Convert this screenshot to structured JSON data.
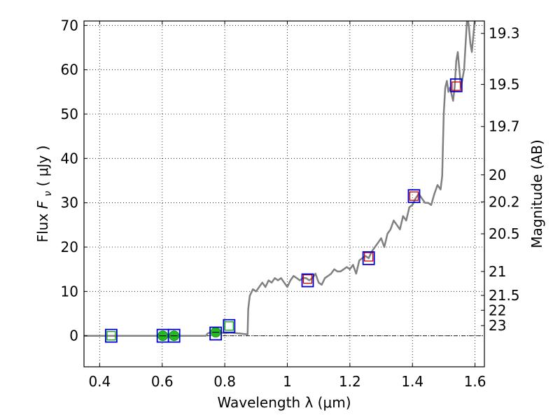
{
  "chart_data": {
    "type": "line",
    "xlabel": "Wavelength  λ (μm)",
    "ylabel": "Flux  F_ν  ( μJy )",
    "ylabel_parts": {
      "pre": "Flux ",
      "var": "F",
      "sub": "ν",
      "post": "  ( μJy )"
    },
    "ylabel_right": "Magnitude (AB)",
    "xlim": [
      0.35,
      1.63
    ],
    "ylim": [
      -7,
      71
    ],
    "x_ticks": [
      0.4,
      0.6,
      0.8,
      1.0,
      1.2,
      1.4,
      1.6
    ],
    "x_tick_labels": [
      "0.4",
      "0.6",
      "0.8",
      "1",
      "1.2",
      "1.4",
      "1.6"
    ],
    "y_ticks": [
      0,
      10,
      20,
      30,
      40,
      50,
      60,
      70
    ],
    "y_tick_labels": [
      "0",
      "10",
      "20",
      "30",
      "40",
      "50",
      "60",
      "70"
    ],
    "mag_ticks": [
      {
        "label": "19.3",
        "flux": 68.2
      },
      {
        "label": "19.5",
        "flux": 56.7
      },
      {
        "label": "19.7",
        "flux": 47.2
      },
      {
        "label": "20",
        "flux": 36.3
      },
      {
        "label": "20.2",
        "flux": 30.2
      },
      {
        "label": "20.5",
        "flux": 23.0
      },
      {
        "label": "21",
        "flux": 14.5
      },
      {
        "label": "21.5",
        "flux": 9.1
      },
      {
        "label": "22",
        "flux": 5.75
      },
      {
        "label": "23",
        "flux": 2.29
      }
    ],
    "grid": true,
    "colors": {
      "model_sed": "#808080",
      "observed_box": "#0000cc",
      "model_phot_red": "#cc0000",
      "model_phot_green": "#00aa00",
      "detection_dot": "#22bb22",
      "zero_line": "#000000"
    },
    "series": [
      {
        "kind": "model_sed",
        "x": [
          0.35,
          0.74,
          0.745,
          0.76,
          0.78,
          0.8,
          0.82,
          0.85,
          0.873,
          0.875,
          0.88,
          0.89,
          0.9,
          0.92,
          0.93,
          0.94,
          0.95,
          0.96,
          0.97,
          0.98,
          0.99,
          1.0,
          1.01,
          1.02,
          1.03,
          1.04,
          1.05,
          1.06,
          1.07,
          1.08,
          1.09,
          1.1,
          1.11,
          1.12,
          1.13,
          1.14,
          1.15,
          1.16,
          1.17,
          1.18,
          1.19,
          1.2,
          1.21,
          1.22,
          1.23,
          1.24,
          1.25,
          1.26,
          1.27,
          1.28,
          1.29,
          1.3,
          1.31,
          1.32,
          1.33,
          1.34,
          1.35,
          1.36,
          1.37,
          1.38,
          1.39,
          1.4,
          1.41,
          1.42,
          1.43,
          1.44,
          1.45,
          1.46,
          1.47,
          1.48,
          1.49,
          1.495,
          1.5,
          1.505,
          1.51,
          1.515,
          1.52,
          1.53,
          1.535,
          1.54,
          1.545,
          1.55,
          1.555,
          1.56,
          1.565,
          1.57,
          1.575,
          1.58,
          1.585,
          1.59,
          1.595,
          1.6,
          1.605
        ],
        "y": [
          0,
          0,
          0.5,
          1.0,
          0.8,
          0.6,
          0.7,
          0.5,
          0.3,
          6,
          9,
          10.5,
          10,
          12,
          11,
          12.5,
          12,
          13,
          12.5,
          13,
          12,
          11,
          12.5,
          13.5,
          13,
          12.5,
          13,
          13,
          12.5,
          13,
          14,
          12,
          11.5,
          13,
          13.5,
          14,
          15,
          14.5,
          14.5,
          15,
          15.5,
          15,
          16,
          14,
          17,
          17.5,
          18,
          17.5,
          19,
          20,
          21,
          22,
          20,
          23,
          24,
          26,
          25,
          24,
          27,
          26,
          29,
          29.5,
          31,
          32,
          31,
          30,
          30,
          29.5,
          32,
          34,
          33,
          36,
          50,
          56,
          57.5,
          55,
          56,
          53,
          56,
          62,
          64,
          60,
          56,
          58,
          60,
          66,
          72,
          70,
          66,
          64,
          68,
          72,
          75
        ]
      },
      {
        "kind": "observed",
        "name": "observed_boxes",
        "x": [
          0.437,
          0.602,
          0.638,
          0.771,
          0.814,
          1.065,
          1.26,
          1.405,
          1.54
        ],
        "y": [
          0,
          0,
          0,
          0.5,
          2.2,
          12.5,
          17.5,
          31.5,
          56.5
        ]
      },
      {
        "kind": "model_phot_red",
        "x": [
          1.065,
          1.26,
          1.405,
          1.54
        ],
        "y": [
          12.8,
          17.8,
          31.5,
          56.3
        ]
      },
      {
        "kind": "model_phot_green",
        "x": [
          0.437,
          0.814
        ],
        "y": [
          0,
          2.2
        ]
      },
      {
        "kind": "detections",
        "x": [
          0.602,
          0.638,
          0.771
        ],
        "y": [
          0,
          0,
          0.8
        ]
      }
    ]
  }
}
